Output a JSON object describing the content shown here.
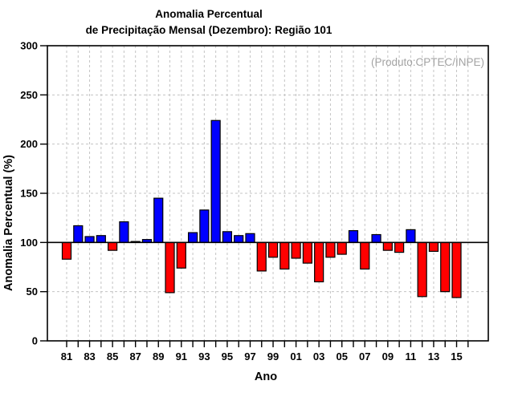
{
  "title": {
    "line1": "Anomalia Percentual",
    "line2": "de Precipitação Mensal (Dezembro): Região 101"
  },
  "watermark": "(Produto:CPTEC/INPE)",
  "chart_data": {
    "type": "bar",
    "title": "Anomalia Percentual de Precipitação Mensal (Dezembro): Região 101",
    "xlabel": "Ano",
    "ylabel": "Anomalia Percentual (%)",
    "ylim": [
      0,
      300
    ],
    "yticks": [
      0,
      50,
      100,
      150,
      200,
      250,
      300
    ],
    "baseline": 100,
    "grid": "dashed",
    "legend": "none",
    "bar_colors": {
      "above_baseline": "#0000ff",
      "below_baseline": "#ff0000",
      "outline": "#000000"
    },
    "categories": [
      "81",
      "82",
      "83",
      "84",
      "85",
      "86",
      "87",
      "88",
      "89",
      "90",
      "91",
      "92",
      "93",
      "94",
      "95",
      "96",
      "97",
      "98",
      "99",
      "00",
      "01",
      "02",
      "03",
      "04",
      "05",
      "06",
      "07",
      "08",
      "09",
      "10",
      "11",
      "12",
      "13",
      "14",
      "15"
    ],
    "values": [
      83,
      117,
      106,
      107,
      92,
      121,
      101,
      103,
      145,
      49,
      74,
      110,
      133,
      224,
      111,
      107,
      109,
      71,
      85,
      73,
      84,
      79,
      60,
      85,
      88,
      112,
      73,
      108,
      92,
      90,
      113,
      45,
      91,
      50,
      44
    ],
    "xtick_label_step": 2
  }
}
